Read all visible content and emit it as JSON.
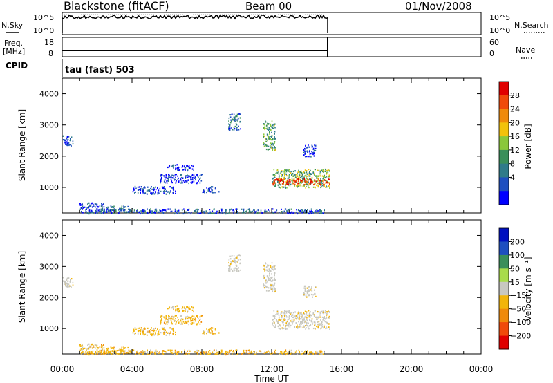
{
  "header": {
    "station": "Blackstone (fitACF)",
    "beam": "Beam 00",
    "date": "01/Nov/2008"
  },
  "status_panels": {
    "nsky": {
      "label": "N.Sky",
      "ticks": [
        "10^5",
        "10^0"
      ]
    },
    "nsearch": {
      "label": "N.Search",
      "ticks": [
        "10^5",
        "10^0"
      ]
    },
    "freq": {
      "label_line1": "Freq.",
      "label_line2": "[MHz]",
      "ticks": [
        "18",
        "8"
      ]
    },
    "nave": {
      "label": "Nave",
      "ticks": [
        "60",
        "0"
      ]
    },
    "cpid": {
      "label": "CPID",
      "value": "tau (fast) 503"
    }
  },
  "chart_data": [
    {
      "type": "heatmap",
      "name": "power",
      "ylabel": "Slant Range [km]",
      "xlabel": "Time UT",
      "xlim": [
        0,
        24
      ],
      "ylim": [
        180,
        4500
      ],
      "yticks": [
        "4000",
        "3000",
        "2000",
        "1000"
      ],
      "xticks": [
        "00:00",
        "04:00",
        "08:00",
        "12:00",
        "16:00",
        "20:00",
        "00:00"
      ],
      "colorbar": {
        "label": "Power [dB]",
        "ticks": [
          "28",
          "24",
          "20",
          "16",
          "12",
          "8",
          "4"
        ],
        "colors": [
          "#0000ff",
          "#1e4fc0",
          "#2f7b8a",
          "#3a8f5a",
          "#8ac83a",
          "#f2c20a",
          "#f08a0a",
          "#f04a0a",
          "#e00000"
        ]
      },
      "scatter_regions": [
        {
          "t0": 0.0,
          "t1": 0.6,
          "r0": 2350,
          "r1": 2700,
          "level": 0.15
        },
        {
          "t0": 0.9,
          "t1": 2.4,
          "r0": 330,
          "r1": 520,
          "level": 0.1
        },
        {
          "t0": 2.2,
          "t1": 4.0,
          "r0": 250,
          "r1": 420,
          "level": 0.3
        },
        {
          "t0": 4.0,
          "t1": 6.5,
          "r0": 800,
          "r1": 1050,
          "level": 0.15
        },
        {
          "t0": 5.6,
          "t1": 8.0,
          "r0": 1150,
          "r1": 1450,
          "level": 0.1
        },
        {
          "t0": 6.0,
          "t1": 7.5,
          "r0": 1550,
          "r1": 1750,
          "level": 0.1
        },
        {
          "t0": 8.0,
          "t1": 9.0,
          "r0": 850,
          "r1": 1050,
          "level": 0.15
        },
        {
          "t0": 9.5,
          "t1": 10.2,
          "r0": 2850,
          "r1": 3400,
          "level": 0.25
        },
        {
          "t0": 11.5,
          "t1": 12.2,
          "r0": 2200,
          "r1": 3150,
          "level": 0.4
        },
        {
          "t0": 12.0,
          "t1": 15.3,
          "r0": 1000,
          "r1": 1600,
          "level": 0.45
        },
        {
          "t0": 12.0,
          "t1": 15.3,
          "r0": 1100,
          "r1": 1300,
          "level": 0.85
        },
        {
          "t0": 13.8,
          "t1": 14.5,
          "r0": 2000,
          "r1": 2400,
          "level": 0.1
        },
        {
          "t0": 1.0,
          "t1": 15.0,
          "r0": 180,
          "r1": 330,
          "level": 0.2
        }
      ]
    },
    {
      "type": "heatmap",
      "name": "velocity",
      "ylabel": "Slant Range [km]",
      "xlabel": "Time UT",
      "xlim": [
        0,
        24
      ],
      "ylim": [
        180,
        4500
      ],
      "yticks": [
        "4000",
        "3000",
        "2000",
        "1000"
      ],
      "xticks": [
        "00:00",
        "04:00",
        "08:00",
        "12:00",
        "16:00",
        "20:00",
        "00:00"
      ],
      "colorbar": {
        "label": "Velocity [m s⁻¹]",
        "ticks": [
          "200",
          "100",
          "50",
          "15",
          "−15",
          "−50",
          "−100",
          "−200"
        ],
        "colors": [
          "#e00000",
          "#f04a0a",
          "#f08a0a",
          "#f2b50a",
          "#c8c8c0",
          "#a8dc4a",
          "#3a8f5a",
          "#1e4fc0",
          "#0010c0"
        ]
      },
      "scatter_regions": [
        {
          "t0": 0.0,
          "t1": 0.6,
          "r0": 2350,
          "r1": 2700,
          "vel": "gray"
        },
        {
          "t0": 0.9,
          "t1": 2.4,
          "r0": 330,
          "r1": 520,
          "vel": "orange"
        },
        {
          "t0": 2.2,
          "t1": 4.0,
          "r0": 250,
          "r1": 420,
          "vel": "orange"
        },
        {
          "t0": 4.0,
          "t1": 6.5,
          "r0": 800,
          "r1": 1050,
          "vel": "orange"
        },
        {
          "t0": 5.6,
          "t1": 8.0,
          "r0": 1150,
          "r1": 1450,
          "vel": "orange"
        },
        {
          "t0": 6.0,
          "t1": 7.5,
          "r0": 1550,
          "r1": 1750,
          "vel": "orange"
        },
        {
          "t0": 8.0,
          "t1": 9.0,
          "r0": 850,
          "r1": 1050,
          "vel": "orange"
        },
        {
          "t0": 9.5,
          "t1": 10.2,
          "r0": 2850,
          "r1": 3400,
          "vel": "gray"
        },
        {
          "t0": 11.5,
          "t1": 12.2,
          "r0": 2200,
          "r1": 3150,
          "vel": "gray"
        },
        {
          "t0": 12.0,
          "t1": 15.3,
          "r0": 1000,
          "r1": 1600,
          "vel": "gray"
        },
        {
          "t0": 13.8,
          "t1": 14.5,
          "r0": 2000,
          "r1": 2400,
          "vel": "gray"
        },
        {
          "t0": 1.0,
          "t1": 15.0,
          "r0": 180,
          "r1": 330,
          "vel": "orange"
        }
      ]
    }
  ]
}
